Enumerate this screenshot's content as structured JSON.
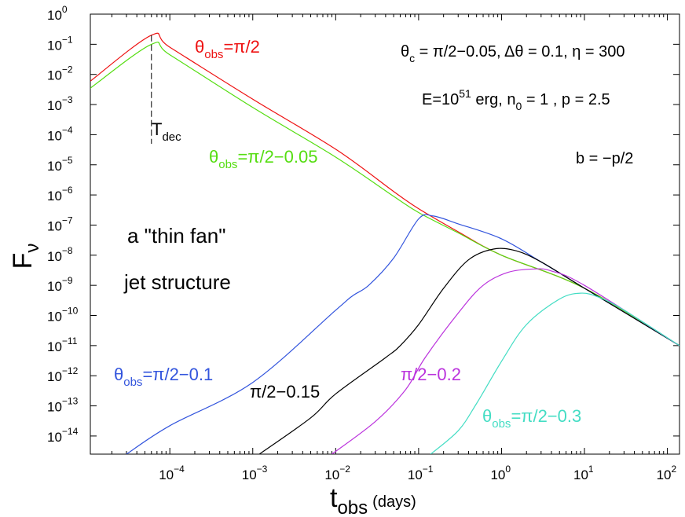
{
  "chart_data": {
    "type": "line",
    "xscale": "log",
    "yscale": "log",
    "xlim": [
      1.1e-05,
      140
    ],
    "ylim": [
      2.5e-15,
      1.0
    ],
    "xlabel": {
      "main": "t",
      "sub": "obs",
      "unit": "(days)"
    },
    "ylabel": {
      "main": "F",
      "sub": "ν"
    },
    "x_ticks": [
      {
        "base": "10",
        "exp": "−4",
        "value": 0.0001
      },
      {
        "base": "10",
        "exp": "−3",
        "value": 0.001
      },
      {
        "base": "10",
        "exp": "−2",
        "value": 0.01
      },
      {
        "base": "10",
        "exp": "−1",
        "value": 0.1
      },
      {
        "base": "10",
        "exp": "0",
        "value": 1
      },
      {
        "base": "10",
        "exp": "1",
        "value": 10
      },
      {
        "base": "10",
        "exp": "2",
        "value": 100
      }
    ],
    "y_ticks": [
      {
        "base": "10",
        "exp": "0",
        "value": 1
      },
      {
        "base": "10",
        "exp": "−1",
        "value": 0.1
      },
      {
        "base": "10",
        "exp": "−2",
        "value": 0.01
      },
      {
        "base": "10",
        "exp": "−3",
        "value": 0.001
      },
      {
        "base": "10",
        "exp": "−4",
        "value": 0.0001
      },
      {
        "base": "10",
        "exp": "−5",
        "value": 1e-05
      },
      {
        "base": "10",
        "exp": "−6",
        "value": 1e-06
      },
      {
        "base": "10",
        "exp": "−7",
        "value": 1e-07
      },
      {
        "base": "10",
        "exp": "−8",
        "value": 1e-08
      },
      {
        "base": "10",
        "exp": "−9",
        "value": 1e-09
      },
      {
        "base": "10",
        "exp": "−10",
        "value": 1e-10
      },
      {
        "base": "10",
        "exp": "−11",
        "value": 1e-11
      },
      {
        "base": "10",
        "exp": "−12",
        "value": 1e-12
      },
      {
        "base": "10",
        "exp": "−13",
        "value": 1e-13
      },
      {
        "base": "10",
        "exp": "−14",
        "value": 1e-14
      }
    ],
    "series": [
      {
        "name": "θobs=π/2",
        "color": "#ee1111",
        "points": [
          [
            1.1e-05,
            0.006
          ],
          [
            6e-05,
            0.2
          ],
          [
            0.0001,
            0.08
          ],
          [
            0.001,
            0.0015
          ],
          [
            0.01,
            3.3e-05
          ],
          [
            0.05,
            1.3e-06
          ],
          [
            0.1,
            3.5e-07
          ],
          [
            0.3,
            6e-08
          ],
          [
            1,
            1e-08
          ],
          [
            10,
            8e-10
          ],
          [
            140,
            1e-11
          ]
        ]
      },
      {
        "name": "θobs=π/2−0.05",
        "color": "#55dd11",
        "points": [
          [
            1.1e-05,
            0.0035
          ],
          [
            6e-05,
            0.1
          ],
          [
            0.0001,
            0.045
          ],
          [
            0.001,
            0.0008
          ],
          [
            0.01,
            1.8e-05
          ],
          [
            0.05,
            9e-07
          ],
          [
            0.1,
            2.6e-07
          ],
          [
            0.3,
            5.5e-08
          ],
          [
            1,
            1e-08
          ],
          [
            10,
            8e-10
          ],
          [
            140,
            1e-11
          ]
        ]
      },
      {
        "name": "θobs=π/2−0.1",
        "color": "#3355dd",
        "points": [
          [
            3e-05,
            2.5e-15
          ],
          [
            0.0001,
            2.2e-14
          ],
          [
            0.001,
            6e-13
          ],
          [
            0.01,
            1.5e-10
          ],
          [
            0.016,
            4.5e-10
          ],
          [
            0.025,
            1e-09
          ],
          [
            0.05,
            8e-09
          ],
          [
            0.1,
            1.6e-07
          ],
          [
            0.15,
            2e-07
          ],
          [
            0.3,
            1.1e-07
          ],
          [
            1,
            3.5e-08
          ],
          [
            3,
            6e-09
          ],
          [
            10,
            8e-10
          ],
          [
            140,
            1e-11
          ]
        ]
      },
      {
        "name": "π/2−0.15",
        "color": "#000000",
        "points": [
          [
            0.0012,
            2.5e-15
          ],
          [
            0.005,
            4e-14
          ],
          [
            0.01,
            2.5e-13
          ],
          [
            0.04,
            4e-12
          ],
          [
            0.06,
            1e-11
          ],
          [
            0.1,
            5e-11
          ],
          [
            0.2,
            8e-10
          ],
          [
            0.4,
            7e-09
          ],
          [
            0.8,
            1.6e-08
          ],
          [
            1.5,
            1.4e-08
          ],
          [
            3,
            6e-09
          ],
          [
            10,
            8e-10
          ],
          [
            140,
            1e-11
          ]
        ]
      },
      {
        "name": "π/2−0.2",
        "color": "#bb33dd",
        "points": [
          [
            0.009,
            2.5e-15
          ],
          [
            0.03,
            3e-14
          ],
          [
            0.07,
            3.5e-13
          ],
          [
            0.12,
            4e-12
          ],
          [
            0.3,
            1.2e-10
          ],
          [
            0.6,
            1e-09
          ],
          [
            1.2,
            2.7e-09
          ],
          [
            2.5,
            3.5e-09
          ],
          [
            4,
            3e-09
          ],
          [
            10,
            1e-09
          ],
          [
            140,
            1e-11
          ]
        ]
      },
      {
        "name": "θobs=π/2−0.3",
        "color": "#44ddc4",
        "points": [
          [
            0.14,
            2.5e-15
          ],
          [
            0.3,
            1.5e-14
          ],
          [
            0.5,
            1.2e-13
          ],
          [
            1,
            3e-12
          ],
          [
            2,
            5e-11
          ],
          [
            5,
            3.5e-10
          ],
          [
            9,
            5.5e-10
          ],
          [
            15,
            4e-10
          ],
          [
            30,
            1.5e-10
          ],
          [
            140,
            1e-11
          ]
        ]
      }
    ],
    "vline": {
      "x": 6e-05,
      "style": "dashed",
      "y_from": 0.2,
      "y_to": 5e-05,
      "label": "T",
      "label_sub": "dec"
    },
    "annotations": {
      "red": {
        "main": "θ",
        "sub": "obs",
        "rest": "=π/2"
      },
      "green": {
        "main": "θ",
        "sub": "obs",
        "rest": "=π/2−0.05"
      },
      "blue": {
        "main": "θ",
        "sub": "obs",
        "rest": "=π/2−0.1"
      },
      "black": "π/2−0.15",
      "purple": "π/2−0.2",
      "cyan": {
        "main": "θ",
        "sub": "obs",
        "rest": "=π/2−0.3"
      },
      "params1": {
        "a": "θ",
        "a_sub": "c",
        "b": " = π/2−0.05, Δθ = 0.1, η = 300"
      },
      "params2": {
        "a": "E=10",
        "a_sup": "51",
        "b": " erg, n",
        "b_sub": "0",
        "c": " = 1 , p = 2.5"
      },
      "bparam": "b = −p/2",
      "thin_fan": "a \"thin fan\"",
      "jet_structure": "jet structure"
    }
  }
}
